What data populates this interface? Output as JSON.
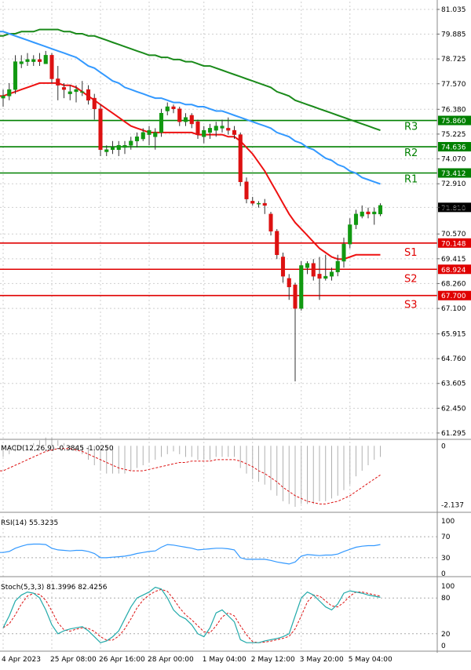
{
  "chart_data": {
    "type": "candlestick",
    "instrument_panel": {
      "y_ticks": [
        "81.035",
        "79.885",
        "78.725",
        "77.570",
        "76.380",
        "75.225",
        "74.070",
        "72.910",
        "71.810",
        "70.570",
        "69.415",
        "68.260",
        "67.100",
        "65.915",
        "64.760",
        "63.605",
        "62.450",
        "61.295"
      ],
      "y_tick_values": [
        81.035,
        79.885,
        78.725,
        77.57,
        76.38,
        75.225,
        74.07,
        72.91,
        71.81,
        70.57,
        69.415,
        68.26,
        67.1,
        65.915,
        64.76,
        63.605,
        62.45,
        61.295
      ],
      "ylim": [
        61.0,
        81.4
      ],
      "levels": [
        {
          "label": "R3",
          "price_label": "75.860",
          "value": 75.86,
          "color": "#008000"
        },
        {
          "label": "",
          "price_label": "74.636",
          "value": 74.636,
          "color": "#008000"
        },
        {
          "label": "R2",
          "price_label": "",
          "value": 74.636,
          "color": "#008000"
        },
        {
          "label": "R1",
          "price_label": "73.412",
          "value": 73.412,
          "color": "#008000"
        },
        {
          "label": "S1",
          "price_label": "70.148",
          "value": 70.148,
          "color": "#e00000"
        },
        {
          "label": "S2",
          "price_label": "68.924",
          "value": 68.924,
          "color": "#e00000"
        },
        {
          "label": "S3",
          "price_label": "67.700",
          "value": 67.7,
          "color": "#e00000"
        }
      ],
      "current_price": {
        "price_label": "71.810",
        "value": 71.81
      },
      "candles": [
        [
          76.9,
          77.3,
          76.5,
          77.0
        ],
        [
          77.0,
          77.6,
          76.8,
          77.3
        ],
        [
          77.3,
          78.9,
          77.1,
          78.6
        ],
        [
          78.5,
          78.9,
          78.3,
          78.6
        ],
        [
          78.6,
          79.0,
          78.4,
          78.7
        ],
        [
          78.6,
          78.9,
          78.4,
          78.7
        ],
        [
          78.7,
          79.0,
          78.4,
          78.6
        ],
        [
          78.5,
          79.1,
          78.5,
          78.9
        ],
        [
          78.9,
          79.0,
          77.6,
          77.8
        ],
        [
          77.8,
          78.4,
          76.8,
          77.5
        ],
        [
          77.4,
          77.6,
          76.9,
          77.3
        ],
        [
          77.1,
          77.5,
          76.8,
          77.2
        ],
        [
          77.2,
          77.5,
          76.7,
          77.3
        ],
        [
          77.2,
          77.7,
          77.0,
          77.2
        ],
        [
          77.3,
          77.5,
          76.6,
          76.8
        ],
        [
          76.9,
          77.1,
          75.9,
          76.4
        ],
        [
          76.4,
          76.6,
          74.2,
          74.5
        ],
        [
          74.4,
          74.7,
          74.2,
          74.5
        ],
        [
          74.5,
          74.9,
          74.3,
          74.6
        ],
        [
          74.5,
          74.9,
          74.2,
          74.7
        ],
        [
          74.6,
          74.9,
          74.3,
          74.7
        ],
        [
          74.7,
          75.1,
          74.5,
          74.9
        ],
        [
          74.9,
          75.3,
          74.6,
          75.1
        ],
        [
          75.0,
          75.5,
          74.9,
          75.3
        ],
        [
          75.2,
          75.6,
          74.7,
          75.4
        ],
        [
          75.1,
          75.5,
          74.5,
          75.3
        ],
        [
          75.3,
          76.4,
          75.1,
          76.2
        ],
        [
          76.3,
          76.7,
          76.1,
          76.5
        ],
        [
          76.5,
          76.6,
          76.2,
          76.4
        ],
        [
          76.4,
          76.5,
          75.6,
          75.8
        ],
        [
          75.8,
          76.2,
          75.6,
          76.0
        ],
        [
          76.1,
          76.2,
          75.5,
          75.7
        ],
        [
          75.8,
          75.9,
          75.0,
          75.2
        ],
        [
          75.1,
          75.6,
          74.8,
          75.4
        ],
        [
          75.3,
          75.7,
          75.0,
          75.5
        ],
        [
          75.4,
          75.8,
          75.1,
          75.6
        ],
        [
          75.5,
          75.9,
          75.3,
          75.6
        ],
        [
          75.5,
          76.0,
          75.2,
          75.4
        ],
        [
          75.4,
          75.6,
          75.0,
          75.2
        ],
        [
          75.2,
          75.3,
          72.8,
          73.0
        ],
        [
          73.0,
          73.2,
          72.0,
          72.2
        ],
        [
          72.1,
          72.3,
          71.9,
          72.0
        ],
        [
          72.0,
          72.1,
          71.8,
          72.0
        ],
        [
          72.0,
          72.2,
          71.5,
          71.9
        ],
        [
          71.5,
          71.6,
          70.5,
          70.7
        ],
        [
          70.7,
          70.8,
          69.4,
          69.6
        ],
        [
          69.5,
          69.7,
          68.3,
          68.6
        ],
        [
          68.5,
          68.7,
          67.5,
          68.1
        ],
        [
          68.2,
          68.3,
          63.7,
          67.1
        ],
        [
          67.1,
          69.3,
          67.0,
          69.1
        ],
        [
          69.0,
          69.3,
          68.7,
          69.2
        ],
        [
          69.2,
          69.4,
          68.4,
          68.6
        ],
        [
          68.7,
          69.5,
          67.5,
          68.5
        ],
        [
          68.5,
          69.6,
          68.4,
          68.6
        ],
        [
          68.6,
          69.0,
          68.4,
          68.8
        ],
        [
          68.8,
          69.6,
          68.6,
          69.3
        ],
        [
          69.3,
          70.4,
          69.0,
          70.1
        ],
        [
          70.1,
          71.3,
          69.9,
          71.0
        ],
        [
          71.0,
          71.7,
          70.8,
          71.5
        ],
        [
          71.4,
          71.9,
          71.3,
          71.6
        ],
        [
          71.6,
          71.8,
          71.3,
          71.5
        ],
        [
          71.5,
          71.8,
          71.0,
          71.6
        ],
        [
          71.5,
          72.0,
          71.4,
          71.9
        ]
      ],
      "sma_red": [
        77.0,
        77.1,
        77.2,
        77.3,
        77.4,
        77.5,
        77.6,
        77.6,
        77.6,
        77.6,
        77.5,
        77.5,
        77.4,
        77.2,
        77.0,
        76.8,
        76.6,
        76.4,
        76.2,
        76.0,
        75.8,
        75.6,
        75.5,
        75.4,
        75.3,
        75.3,
        75.3,
        75.3,
        75.3,
        75.3,
        75.3,
        75.3,
        75.2,
        75.2,
        75.2,
        75.2,
        75.2,
        75.1,
        75.1,
        74.9,
        74.6,
        74.3,
        73.9,
        73.5,
        73.0,
        72.5,
        72.0,
        71.5,
        71.1,
        70.8,
        70.5,
        70.2,
        69.9,
        69.7,
        69.5,
        69.4,
        69.4,
        69.5,
        69.6,
        69.6,
        69.6,
        69.6,
        69.6
      ],
      "sma_blue": [
        80.0,
        79.9,
        79.8,
        79.7,
        79.6,
        79.5,
        79.4,
        79.3,
        79.2,
        79.1,
        79.0,
        78.9,
        78.8,
        78.6,
        78.4,
        78.3,
        78.1,
        77.9,
        77.7,
        77.6,
        77.4,
        77.3,
        77.2,
        77.1,
        77.0,
        76.9,
        76.9,
        76.8,
        76.7,
        76.7,
        76.6,
        76.6,
        76.5,
        76.5,
        76.4,
        76.3,
        76.3,
        76.2,
        76.1,
        76.0,
        75.9,
        75.8,
        75.7,
        75.6,
        75.5,
        75.3,
        75.2,
        75.1,
        74.9,
        74.8,
        74.6,
        74.5,
        74.3,
        74.1,
        74.0,
        73.8,
        73.7,
        73.5,
        73.4,
        73.2,
        73.1,
        73.0,
        72.9
      ],
      "sma_green": [
        79.8,
        79.9,
        79.9,
        80.0,
        80.0,
        80.0,
        80.1,
        80.1,
        80.1,
        80.1,
        80.0,
        80.0,
        79.9,
        79.9,
        79.8,
        79.8,
        79.7,
        79.6,
        79.5,
        79.4,
        79.3,
        79.2,
        79.1,
        79.0,
        78.9,
        78.9,
        78.8,
        78.8,
        78.7,
        78.7,
        78.6,
        78.6,
        78.5,
        78.4,
        78.4,
        78.3,
        78.2,
        78.1,
        78.0,
        77.9,
        77.8,
        77.7,
        77.6,
        77.5,
        77.4,
        77.2,
        77.1,
        77.0,
        76.8,
        76.7,
        76.6,
        76.5,
        76.4,
        76.3,
        76.2,
        76.1,
        76.0,
        75.9,
        75.8,
        75.7,
        75.6,
        75.5,
        75.4
      ]
    },
    "macd_panel": {
      "label": "MACD(12,26,9) -0.3845 -1.0250",
      "y_ticks": [
        "0",
        "-2.137"
      ],
      "ylim": [
        -2.4,
        0.15
      ],
      "histogram": [
        -0.4,
        -0.3,
        -0.2,
        -0.1,
        0.0,
        0.1,
        0.2,
        0.3,
        0.3,
        0.2,
        0.1,
        -0.1,
        -0.2,
        -0.3,
        -0.5,
        -0.7,
        -0.9,
        -1.0,
        -1.0,
        -1.0,
        -1.0,
        -0.9,
        -0.8,
        -0.7,
        -0.6,
        -0.5,
        -0.4,
        -0.3,
        -0.2,
        -0.3,
        -0.4,
        -0.4,
        -0.5,
        -0.5,
        -0.5,
        -0.4,
        -0.4,
        -0.4,
        -0.4,
        -0.8,
        -1.0,
        -1.2,
        -1.3,
        -1.4,
        -1.6,
        -1.8,
        -2.0,
        -2.1,
        -2.2,
        -2.1,
        -2.1,
        -2.1,
        -2.0,
        -2.0,
        -1.9,
        -1.8,
        -1.6,
        -1.4,
        -1.1,
        -0.9,
        -0.7,
        -0.5,
        -0.4
      ],
      "signal": [
        -0.9,
        -0.8,
        -0.7,
        -0.6,
        -0.5,
        -0.4,
        -0.3,
        -0.2,
        -0.15,
        -0.1,
        -0.1,
        -0.1,
        -0.15,
        -0.2,
        -0.3,
        -0.4,
        -0.5,
        -0.6,
        -0.7,
        -0.8,
        -0.85,
        -0.9,
        -0.9,
        -0.9,
        -0.85,
        -0.8,
        -0.75,
        -0.7,
        -0.65,
        -0.6,
        -0.6,
        -0.55,
        -0.55,
        -0.55,
        -0.55,
        -0.5,
        -0.5,
        -0.5,
        -0.5,
        -0.55,
        -0.65,
        -0.75,
        -0.9,
        -1.0,
        -1.15,
        -1.3,
        -1.5,
        -1.65,
        -1.8,
        -1.9,
        -2.0,
        -2.05,
        -2.1,
        -2.1,
        -2.05,
        -2.0,
        -1.9,
        -1.8,
        -1.65,
        -1.5,
        -1.35,
        -1.2,
        -1.05
      ]
    },
    "rsi_panel": {
      "label": "RSI(14) 55.3235",
      "y_ticks": [
        "100",
        "70",
        "30",
        "0"
      ],
      "ylim": [
        0,
        100
      ],
      "values": [
        40,
        42,
        48,
        52,
        55,
        56,
        56,
        55,
        48,
        45,
        44,
        43,
        44,
        44,
        42,
        38,
        30,
        30,
        31,
        32,
        33,
        35,
        38,
        40,
        42,
        43,
        50,
        55,
        54,
        52,
        50,
        48,
        45,
        46,
        47,
        48,
        48,
        47,
        45,
        30,
        27,
        27,
        27,
        27,
        25,
        22,
        20,
        18,
        22,
        33,
        36,
        35,
        34,
        35,
        35,
        37,
        42,
        46,
        50,
        52,
        53,
        53,
        55
      ]
    },
    "stoch_panel": {
      "label": "Stoch(5,3,3) 81.3996 82.4256",
      "y_ticks": [
        "100",
        "80",
        "20",
        "0"
      ],
      "ylim": [
        0,
        100
      ],
      "k": [
        30,
        50,
        75,
        85,
        90,
        88,
        80,
        60,
        35,
        20,
        25,
        28,
        30,
        32,
        25,
        15,
        5,
        8,
        15,
        25,
        45,
        65,
        80,
        85,
        90,
        98,
        95,
        80,
        60,
        50,
        45,
        35,
        20,
        15,
        30,
        55,
        60,
        50,
        40,
        10,
        5,
        5,
        5,
        8,
        10,
        12,
        15,
        20,
        50,
        80,
        90,
        85,
        75,
        65,
        60,
        70,
        88,
        92,
        90,
        88,
        85,
        83,
        81
      ]
    },
    "x_ticks": [
      "4 Apr 2023",
      "25 Apr 08:00",
      "26 Apr 16:00",
      "28 Apr 00:00",
      "1 May 04:00",
      "2 May 12:00",
      "3 May 20:00",
      "5 May 04:00"
    ],
    "x_tick_index": [
      0,
      8,
      16,
      24,
      33,
      41,
      49,
      57
    ]
  }
}
